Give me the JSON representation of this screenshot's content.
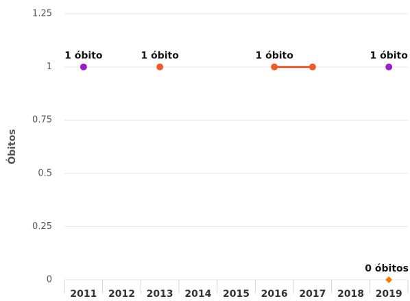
{
  "chart_data": {
    "type": "line",
    "ylabel": "Óbitos",
    "categories": [
      "2011",
      "2012",
      "2013",
      "2014",
      "2015",
      "2016",
      "2017",
      "2018",
      "2019"
    ],
    "series": [
      {
        "color": "#9b1fc9",
        "marker": "circle",
        "line": false,
        "values": [
          1,
          null,
          null,
          null,
          null,
          null,
          null,
          null,
          1
        ],
        "value_labels": [
          "1 óbito",
          null,
          null,
          null,
          null,
          null,
          null,
          null,
          "1 óbito"
        ]
      },
      {
        "color": "#f05a28",
        "marker": "circle",
        "line": true,
        "values": [
          null,
          null,
          1,
          null,
          null,
          1,
          1,
          null,
          null
        ],
        "value_labels": [
          null,
          null,
          "1 óbito",
          null,
          null,
          "1 óbito",
          null,
          null,
          null
        ]
      },
      {
        "color": "#f57c00",
        "marker": "diamond",
        "line": false,
        "values": [
          null,
          null,
          null,
          null,
          null,
          null,
          null,
          null,
          0
        ],
        "value_labels": [
          null,
          null,
          null,
          null,
          null,
          null,
          null,
          null,
          "0 óbitos"
        ]
      }
    ],
    "ylim": [
      0,
      1.25
    ],
    "yticks": [
      0,
      0.25,
      0.5,
      0.75,
      1,
      1.25
    ],
    "grid": true
  }
}
